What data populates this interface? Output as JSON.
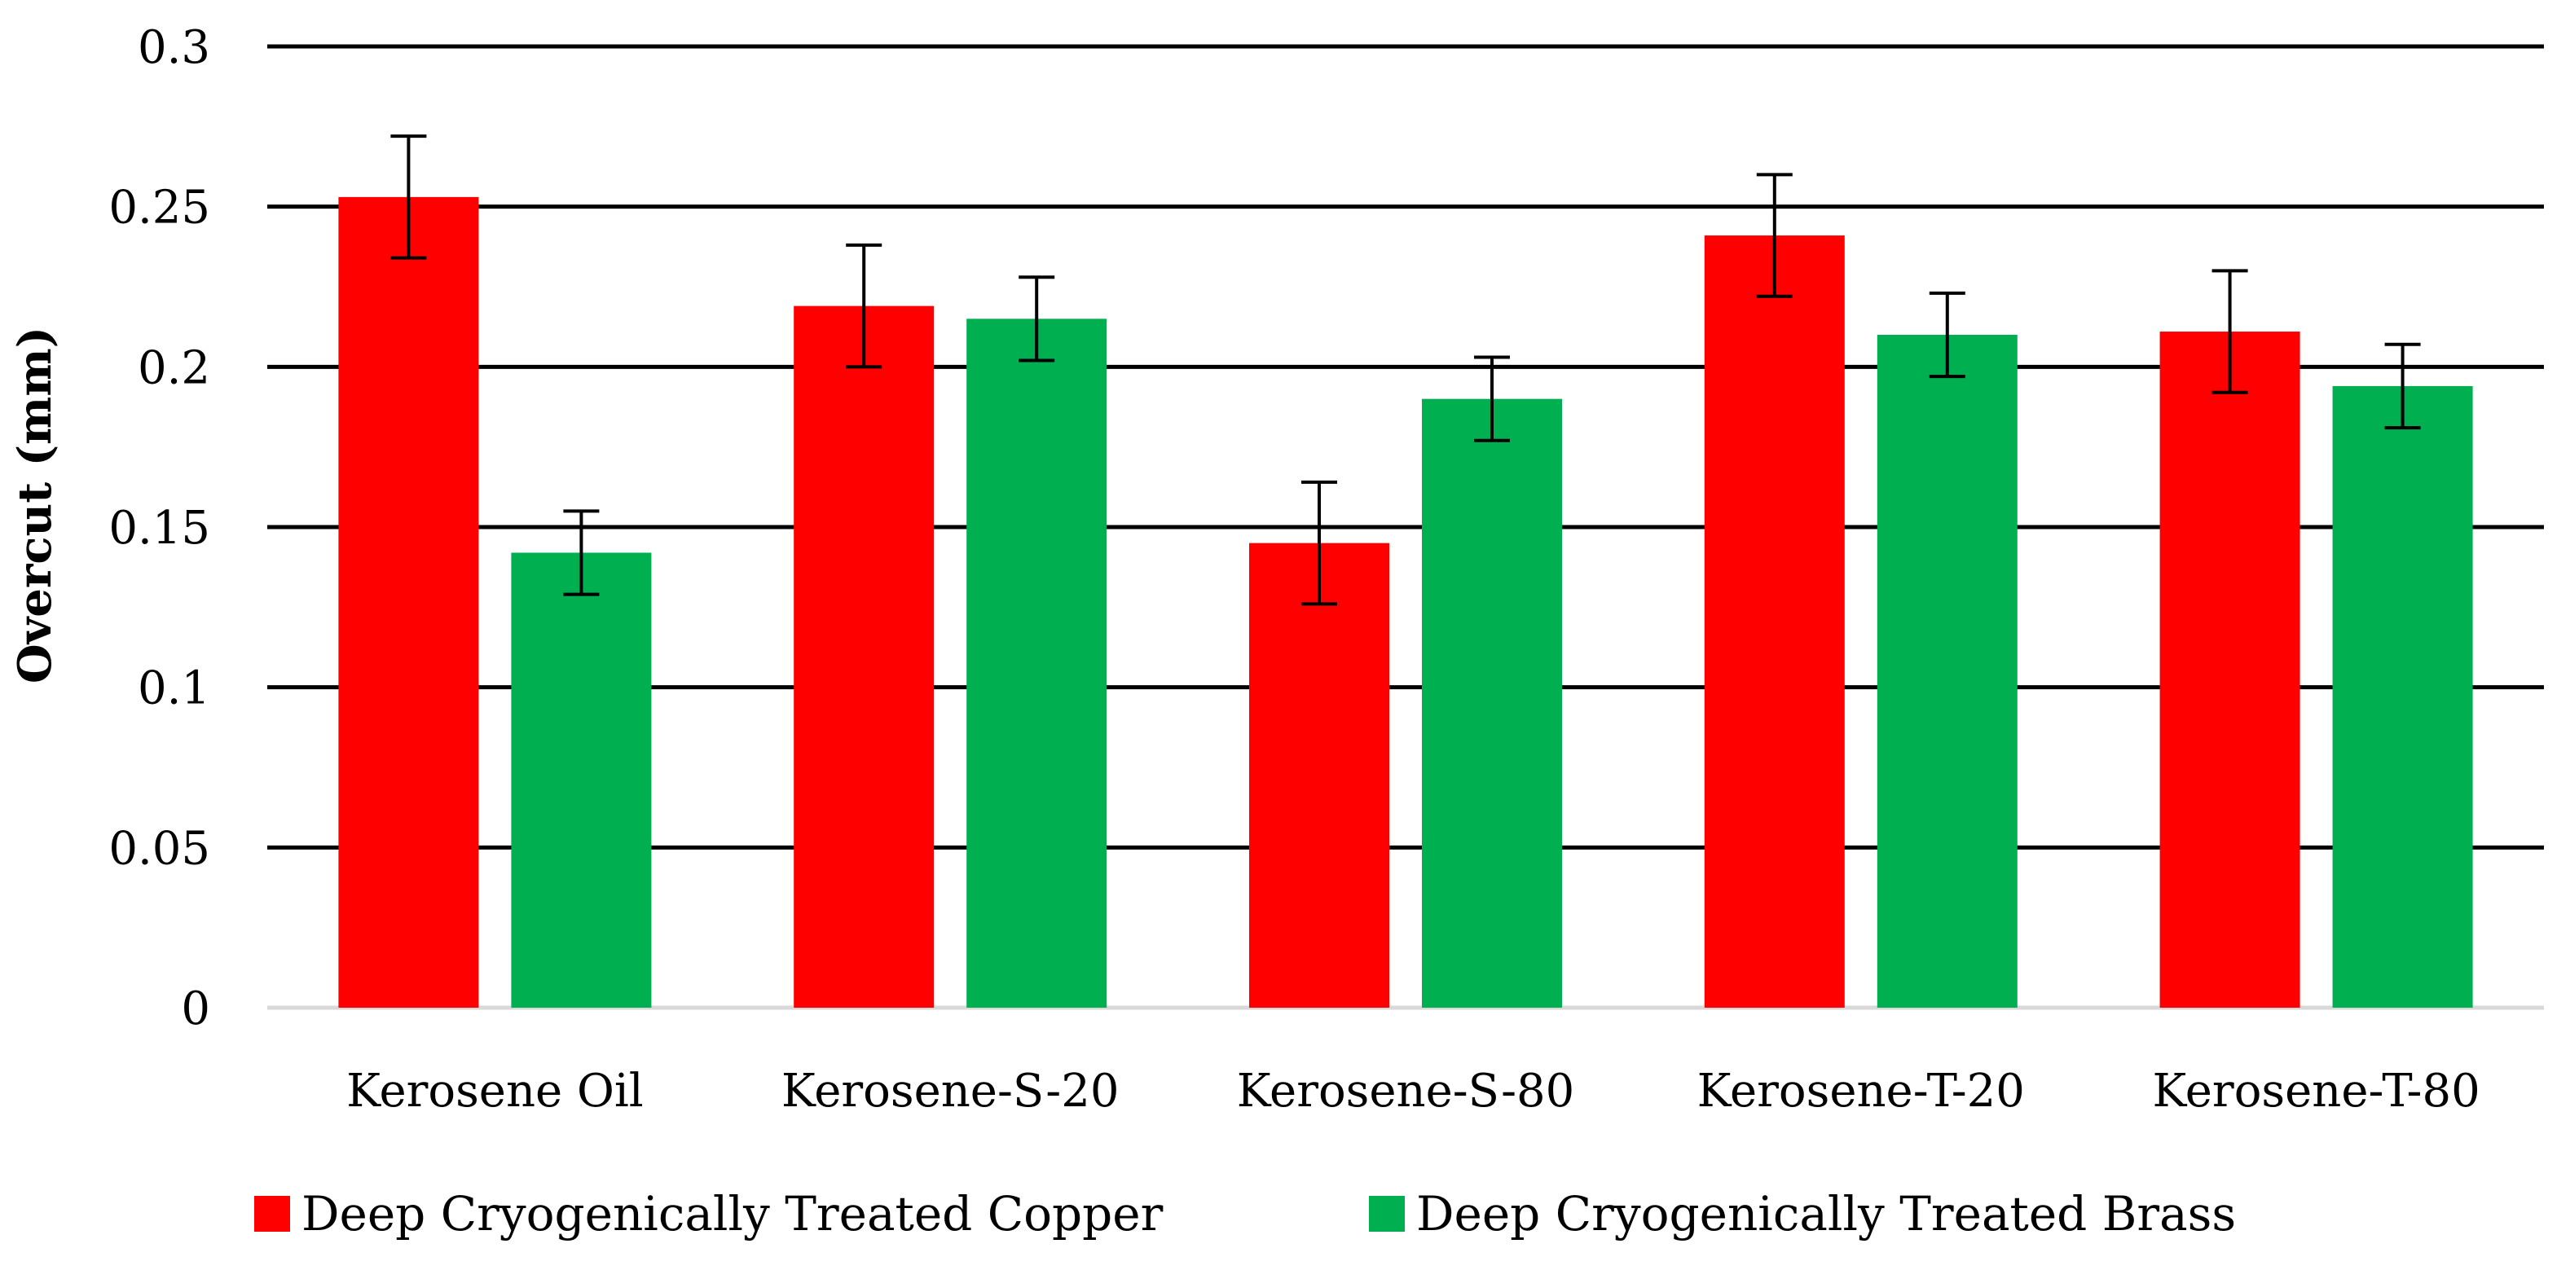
{
  "chart_data": {
    "type": "bar",
    "title": "",
    "xlabel": "",
    "ylabel": "Overcut (mm)",
    "ylim": [
      0,
      0.3
    ],
    "yticks": [
      "0",
      "0.05",
      "0.1",
      "0.15",
      "0.2",
      "0.25",
      "0.3"
    ],
    "ytick_values": [
      0,
      0.05,
      0.1,
      0.15,
      0.2,
      0.25,
      0.3
    ],
    "grid": true,
    "legend_position": "bottom",
    "categories": [
      "Kerosene Oil",
      "Kerosene-S-20",
      "Kerosene-S-80",
      "Kerosene-T-20",
      "Kerosene-T-80"
    ],
    "series": [
      {
        "name": "Deep Cryogenically Treated Copper",
        "color": "#ff0000",
        "values": [
          0.253,
          0.219,
          0.145,
          0.241,
          0.211
        ],
        "errors": [
          0.019,
          0.019,
          0.019,
          0.019,
          0.019
        ]
      },
      {
        "name": "Deep Cryogenically Treated Brass",
        "color": "#00b050",
        "values": [
          0.142,
          0.215,
          0.19,
          0.21,
          0.194
        ],
        "errors": [
          0.013,
          0.013,
          0.013,
          0.013,
          0.013
        ]
      }
    ],
    "colors": {
      "grid": "#000000",
      "axis": "#d9d9d9",
      "errorbar": "#000000"
    }
  }
}
